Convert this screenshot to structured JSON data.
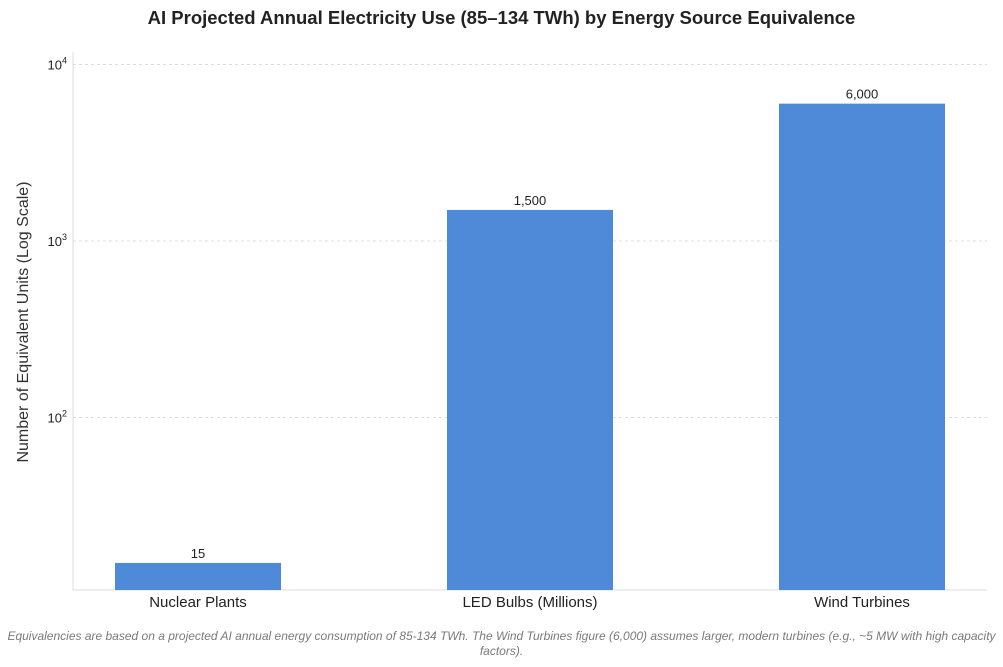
{
  "chart_data": {
    "type": "bar",
    "title": "AI Projected Annual Electricity Use (85–134 TWh) by Energy Source Equivalence",
    "xlabel": "",
    "ylabel": "Number of Equivalent Units (Log Scale)",
    "yscale": "log",
    "ylim": [
      10,
      10000
    ],
    "yticks": [
      {
        "value": 100,
        "base": "10",
        "exp": "2"
      },
      {
        "value": 1000,
        "base": "10",
        "exp": "3"
      },
      {
        "value": 10000,
        "base": "10",
        "exp": "4"
      }
    ],
    "grid": "horizontal, dashed",
    "categories": [
      "Nuclear Plants",
      "LED Bulbs (Millions)",
      "Wind Turbines"
    ],
    "values": [
      15,
      1500,
      6000
    ],
    "value_labels": [
      "15",
      "1,500",
      "6,000"
    ],
    "bar_color": "#4f8ad9"
  },
  "footnote": "Equivalencies are based on a projected AI annual energy consumption of 85-134 TWh. The Wind Turbines figure (6,000) assumes larger, modern turbines (e.g., ~5 MW with high capacity factors)."
}
